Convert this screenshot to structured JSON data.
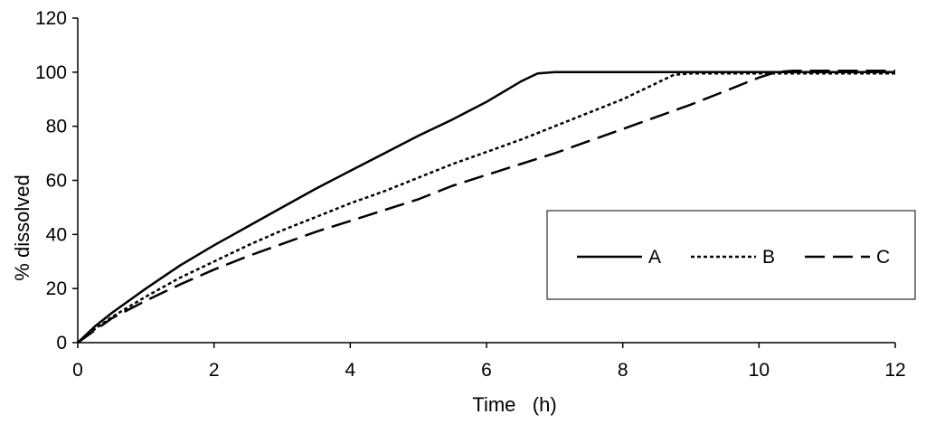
{
  "chart_data": {
    "type": "line",
    "title": "",
    "xlabel": "Time   (h)",
    "ylabel": "% dissolved",
    "xlim": [
      0,
      12
    ],
    "ylim": [
      0,
      120
    ],
    "xticks": [
      0,
      2,
      4,
      6,
      8,
      10,
      12
    ],
    "yticks": [
      0,
      20,
      40,
      60,
      80,
      100,
      120
    ],
    "grid": false,
    "legend_position": "lower-right",
    "series": [
      {
        "name": "A",
        "style": "solid",
        "x": [
          0,
          0.25,
          0.5,
          1,
          1.5,
          2,
          2.5,
          3,
          3.5,
          4,
          4.5,
          5,
          5.5,
          6,
          6.5,
          6.75,
          7,
          8,
          9,
          10,
          11,
          12
        ],
        "y": [
          0,
          6,
          11,
          20,
          28.5,
          36,
          43,
          50,
          57,
          63.5,
          70,
          76.5,
          82.5,
          89,
          96.5,
          99.5,
          100,
          100,
          100,
          100,
          100,
          100
        ]
      },
      {
        "name": "B",
        "style": "dotted",
        "x": [
          0,
          0.25,
          0.5,
          1,
          1.5,
          2,
          2.5,
          3,
          3.5,
          4,
          4.5,
          5,
          5.5,
          6,
          6.5,
          7,
          7.5,
          8,
          8.5,
          8.75,
          9,
          10,
          11,
          12
        ],
        "y": [
          0,
          5,
          9.5,
          17,
          24,
          30,
          36,
          41.5,
          46.5,
          51.5,
          56,
          61,
          66,
          70.5,
          75,
          80,
          85,
          90,
          96,
          99,
          99.5,
          99.5,
          99.5,
          99.5
        ]
      },
      {
        "name": "C",
        "style": "dashed",
        "x": [
          0,
          0.25,
          0.5,
          1,
          1.5,
          2,
          2.5,
          3,
          3.5,
          4,
          4.5,
          5,
          5.5,
          6,
          6.5,
          7,
          7.5,
          8,
          8.5,
          9,
          9.5,
          10,
          10.25,
          10.5,
          11,
          12
        ],
        "y": [
          0,
          4.5,
          9,
          15.5,
          21.5,
          27,
          32,
          36.5,
          41,
          45,
          49,
          53,
          58,
          62,
          66,
          70,
          74.5,
          79,
          83.5,
          88,
          93,
          98,
          100,
          100.5,
          100.5,
          100.5
        ]
      }
    ]
  }
}
